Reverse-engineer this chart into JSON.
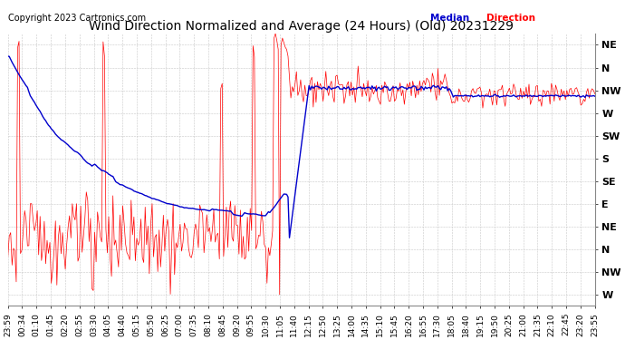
{
  "title": "Wind Direction Normalized and Average (24 Hours) (Old) 20231229",
  "copyright": "Copyright 2023 Cartronics.com",
  "background_color": "#ffffff",
  "grid_color": "#c8c8c8",
  "ytick_labels": [
    "NE",
    "N",
    "NW",
    "W",
    "SW",
    "S",
    "SE",
    "E",
    "NE",
    "N",
    "NW",
    "W"
  ],
  "ytick_values": [
    12,
    11,
    10,
    9,
    8,
    7,
    6,
    5,
    4,
    3,
    2,
    1
  ],
  "ylim": [
    0.5,
    12.5
  ],
  "xtick_labels": [
    "23:59",
    "00:34",
    "01:10",
    "01:45",
    "02:20",
    "02:55",
    "03:30",
    "04:05",
    "04:40",
    "05:15",
    "05:50",
    "06:25",
    "07:00",
    "07:35",
    "08:10",
    "08:45",
    "09:20",
    "09:55",
    "10:30",
    "11:05",
    "11:40",
    "12:15",
    "12:50",
    "13:25",
    "14:00",
    "14:35",
    "15:10",
    "15:45",
    "16:20",
    "16:55",
    "17:30",
    "18:05",
    "18:40",
    "19:15",
    "19:50",
    "20:25",
    "21:00",
    "21:35",
    "22:10",
    "22:45",
    "23:20",
    "23:55"
  ],
  "red_line_color": "#ff0000",
  "blue_line_color": "#0000cc",
  "black_line_color": "#000000",
  "title_fontsize": 10,
  "copyright_fontsize": 7,
  "tick_label_fontsize": 6.5,
  "ytick_fontsize": 8
}
